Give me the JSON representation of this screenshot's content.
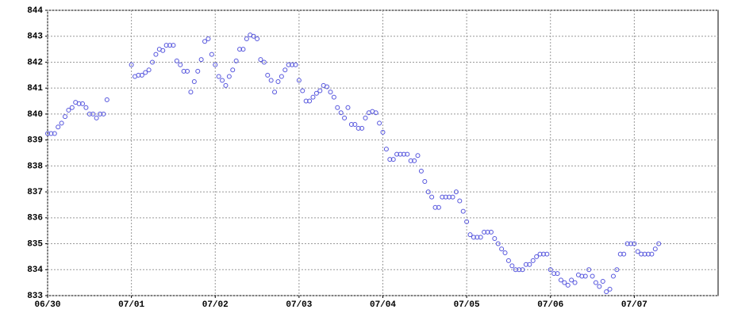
{
  "chart_data": {
    "type": "scatter",
    "x": [
      0,
      1,
      2,
      3,
      4,
      5,
      6,
      7,
      8,
      9,
      10,
      11,
      12,
      13,
      14,
      15,
      16,
      17,
      24,
      25,
      26,
      27,
      28,
      29,
      30,
      31,
      32,
      33,
      34,
      35,
      36,
      37,
      38,
      39,
      40,
      41,
      42,
      43,
      44,
      45,
      46,
      47,
      48,
      49,
      50,
      51,
      52,
      53,
      54,
      55,
      56,
      57,
      58,
      59,
      60,
      61,
      62,
      63,
      64,
      65,
      66,
      67,
      68,
      69,
      70,
      71,
      72,
      73,
      74,
      75,
      76,
      77,
      78,
      79,
      80,
      81,
      82,
      83,
      84,
      85,
      86,
      87,
      88,
      89,
      90,
      91,
      92,
      93,
      94,
      95,
      96,
      97,
      98,
      99,
      100,
      101,
      102,
      103,
      104,
      105,
      106,
      107,
      108,
      109,
      110,
      111,
      112,
      113,
      114,
      115,
      116,
      117,
      118,
      119,
      120,
      121,
      122,
      123,
      124,
      125,
      126,
      127,
      128,
      129,
      130,
      131,
      132,
      133,
      134,
      135,
      136,
      137,
      138,
      139,
      140,
      141,
      142,
      143,
      144,
      145,
      146,
      147,
      148,
      149,
      150,
      151,
      152,
      153,
      154,
      155,
      156,
      157,
      158,
      159,
      160,
      161,
      162,
      163,
      164,
      165,
      166,
      167,
      168,
      169,
      170,
      171,
      172,
      173,
      174,
      175
    ],
    "series": [
      {
        "color": "#5555dd",
        "values": [
          839.25,
          839.25,
          839.25,
          839.5,
          839.65,
          839.9,
          840.15,
          840.25,
          840.45,
          840.4,
          840.4,
          840.25,
          840.0,
          840.0,
          839.85,
          840.0,
          840.0,
          840.55,
          841.9,
          841.45,
          841.5,
          841.5,
          841.6,
          841.7,
          842.0,
          842.3,
          842.5,
          842.45,
          842.65,
          842.65,
          842.65,
          842.05,
          841.9,
          841.65,
          841.65,
          840.85,
          841.25,
          841.65,
          842.1,
          842.8,
          842.9,
          842.3,
          841.9,
          841.45,
          841.3,
          841.1,
          841.45,
          841.7,
          842.05,
          842.5,
          842.5,
          842.9,
          843.05,
          843.0,
          842.9,
          842.1,
          842.0,
          841.5,
          841.3,
          840.85,
          841.25,
          841.45,
          841.7,
          841.9,
          841.9,
          841.9,
          841.3,
          840.9,
          840.5,
          840.5,
          840.65,
          840.8,
          840.9,
          841.1,
          841.05,
          840.85,
          840.65,
          840.25,
          840.05,
          839.85,
          840.25,
          839.6,
          839.6,
          839.45,
          839.45,
          839.85,
          840.05,
          840.1,
          840.05,
          839.65,
          839.3,
          838.65,
          838.25,
          838.25,
          838.45,
          838.45,
          838.45,
          838.45,
          838.2,
          838.2,
          838.4,
          837.8,
          837.4,
          837.0,
          836.8,
          836.4,
          836.4,
          836.8,
          836.8,
          836.8,
          836.8,
          837.0,
          836.65,
          836.25,
          835.85,
          835.35,
          835.25,
          835.25,
          835.25,
          835.45,
          835.45,
          835.45,
          835.2,
          835.0,
          834.8,
          834.65,
          834.35,
          834.15,
          834.0,
          834.0,
          834.0,
          834.2,
          834.2,
          834.35,
          834.5,
          834.6,
          834.6,
          834.6,
          834.0,
          833.85,
          833.85,
          833.6,
          833.5,
          833.4,
          833.6,
          833.5,
          833.8,
          833.75,
          833.75,
          834.0,
          833.75,
          833.5,
          833.35,
          833.55,
          833.15,
          833.25,
          833.75,
          834.0,
          834.6,
          834.6,
          835.0,
          835.0,
          835.0,
          834.7,
          834.6,
          834.6,
          834.6,
          834.6,
          834.8,
          835.0
        ]
      }
    ],
    "xlim": [
      0,
      192
    ],
    "xticks": [
      {
        "value": 0,
        "label": "06/30"
      },
      {
        "value": 24,
        "label": "07/01"
      },
      {
        "value": 48,
        "label": "07/02"
      },
      {
        "value": 72,
        "label": "07/03"
      },
      {
        "value": 96,
        "label": "07/04"
      },
      {
        "value": 120,
        "label": "07/05"
      },
      {
        "value": 144,
        "label": "07/06"
      },
      {
        "value": 168,
        "label": "07/07"
      }
    ],
    "ylim": [
      833,
      844
    ],
    "yticks": [
      833,
      834,
      835,
      836,
      837,
      838,
      839,
      840,
      841,
      842,
      843,
      844
    ],
    "grid": true
  }
}
